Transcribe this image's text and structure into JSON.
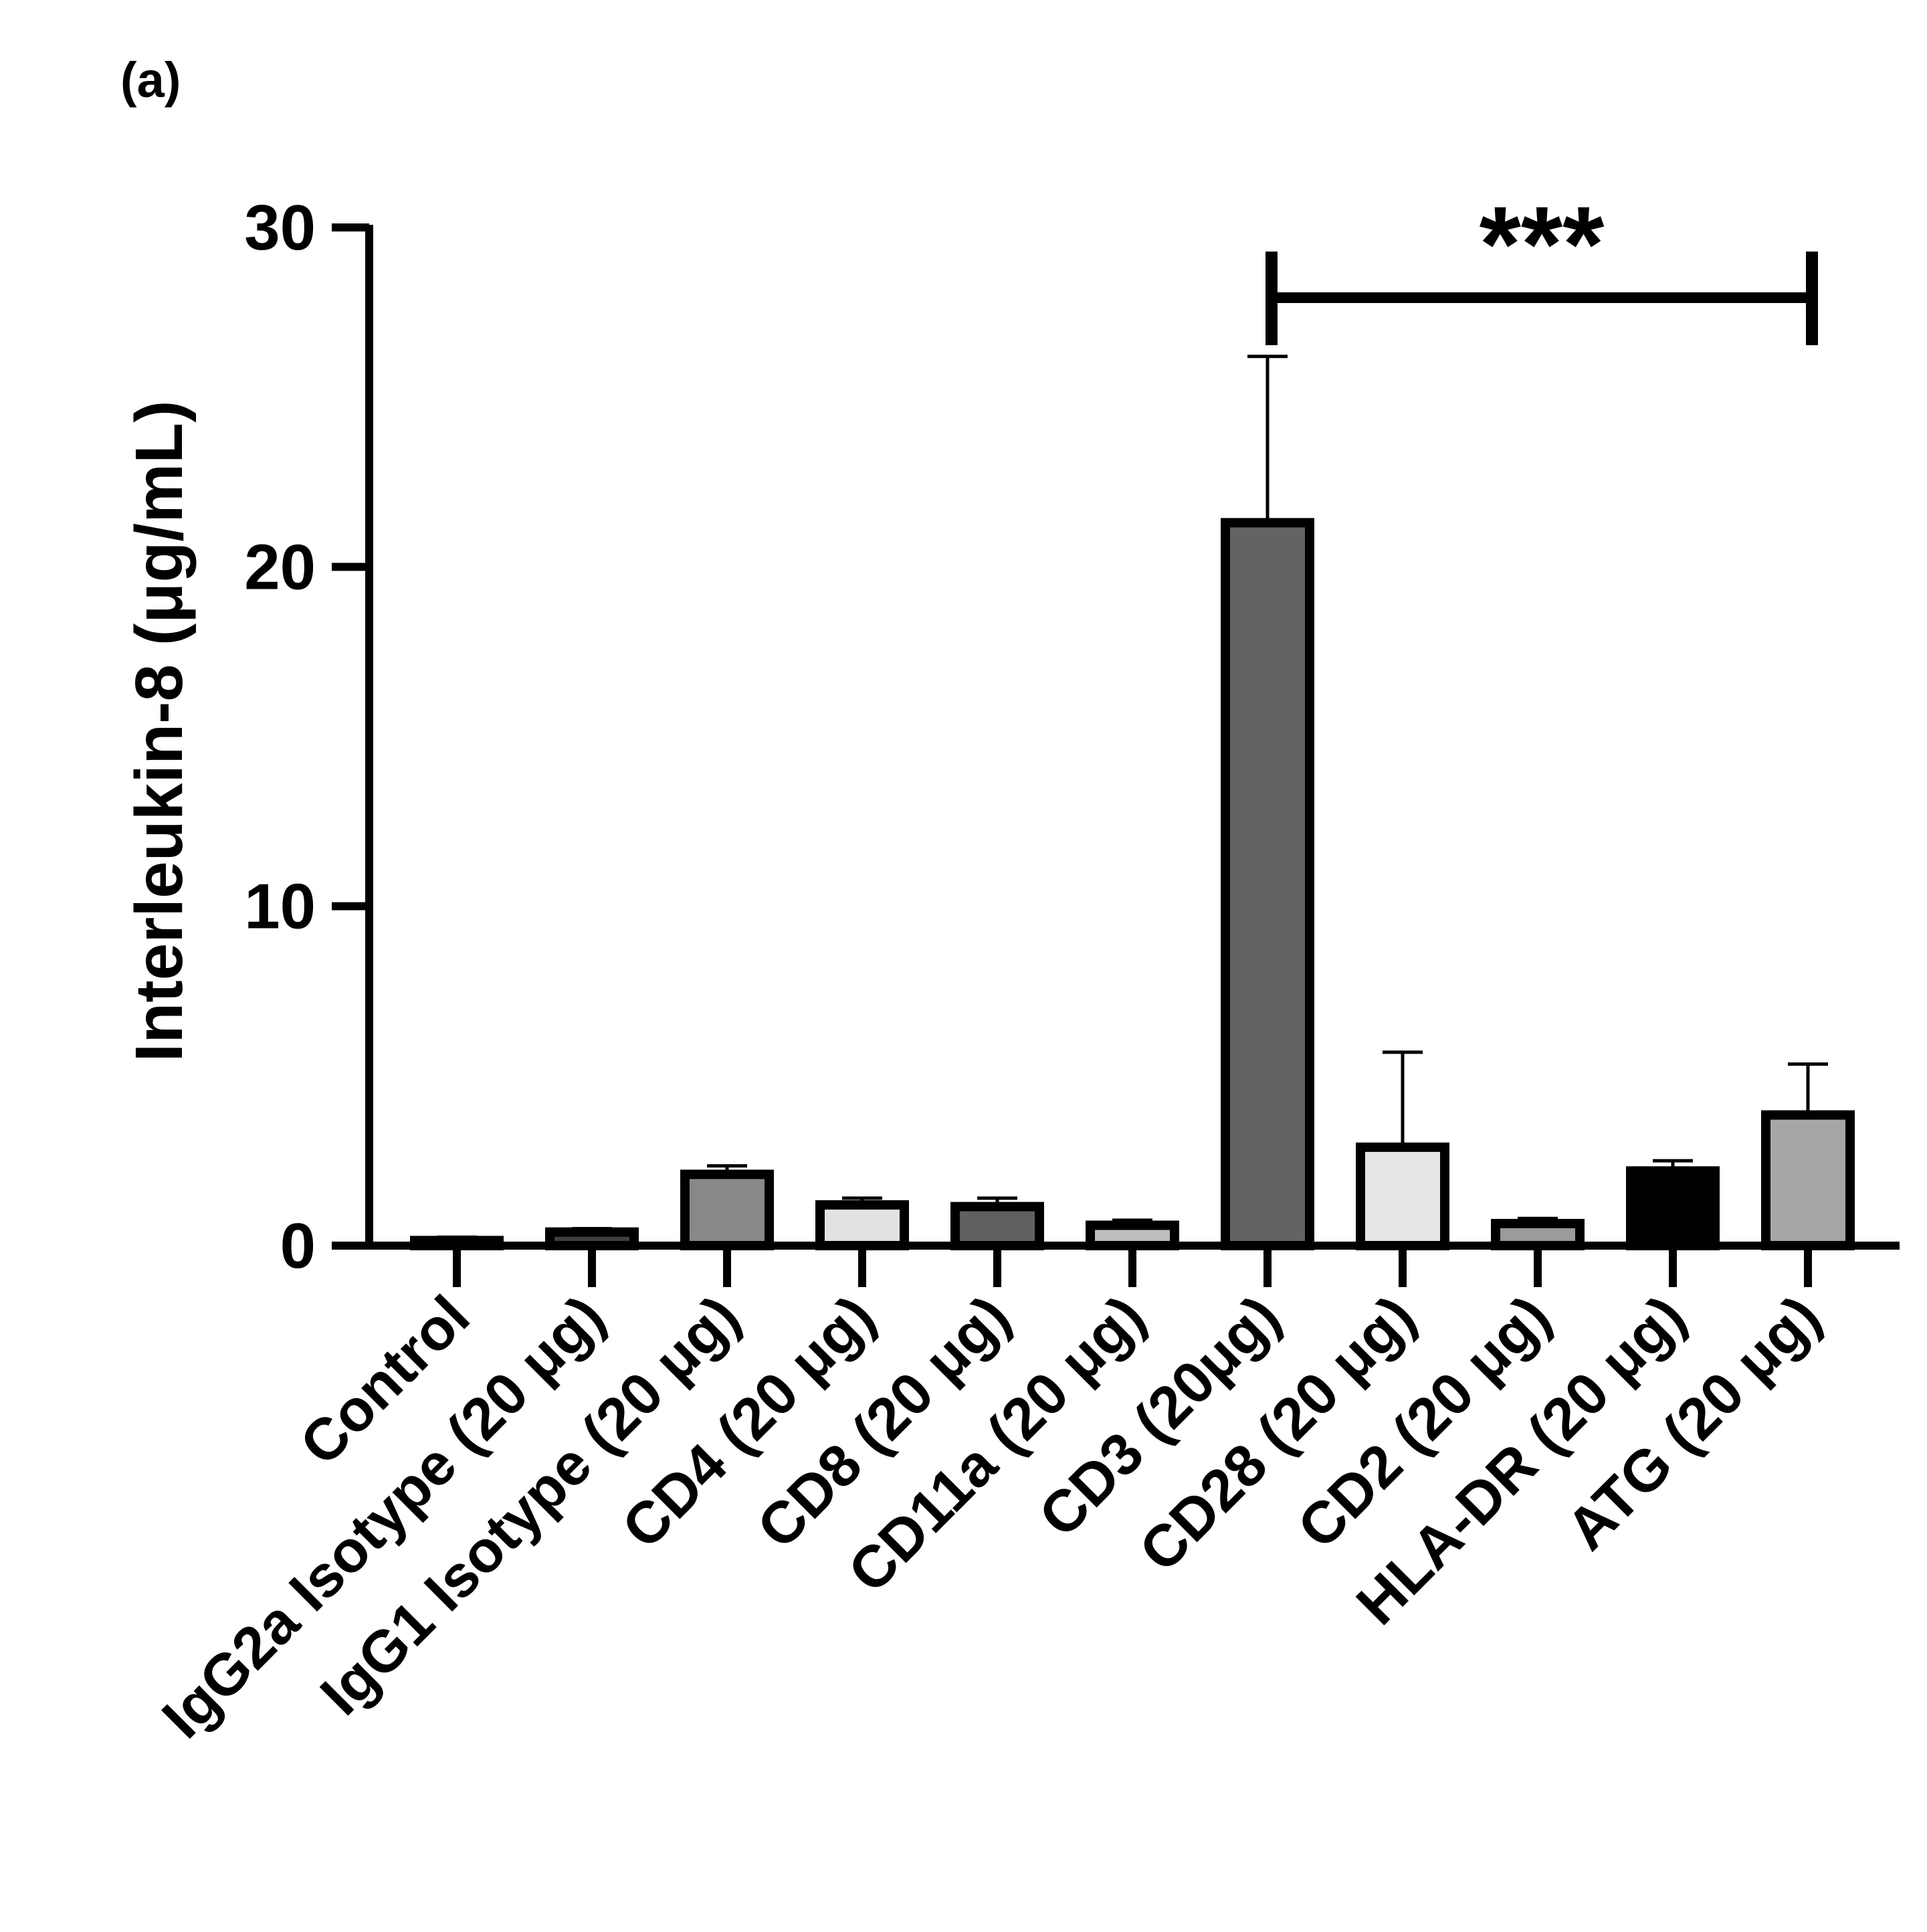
{
  "panel_label": "(a)",
  "significance": "***",
  "chart_data": {
    "type": "bar",
    "ylabel": "Interleukin-8 (μg/mL)",
    "xlabel": "",
    "ylim": [
      0,
      30
    ],
    "yticks": [
      0,
      10,
      20,
      30
    ],
    "grid": false,
    "categories": [
      "Control",
      "IgG2a Isotype (20 μg)",
      "IgG1 Isotype (20 μg)",
      "CD4 (20 μg)",
      "CD8 (20 μg)",
      "CD11a (20 μg)",
      "CD3 (20μg)",
      "CD28 (20 μg)",
      "CD2 (20 μg)",
      "HLA-DR (20 μg)",
      "ATG (20 μg)"
    ],
    "values": [
      0.15,
      0.4,
      2.1,
      1.2,
      1.15,
      0.6,
      21.3,
      2.9,
      0.65,
      2.2,
      3.85
    ],
    "errors": [
      0.1,
      0.1,
      0.25,
      0.2,
      0.25,
      0.15,
      4.9,
      2.8,
      0.15,
      0.3,
      1.5
    ],
    "colors": [
      "#808080",
      "#404040",
      "#888888",
      "#e2e2e2",
      "#606060",
      "#bdbdbd",
      "#636363",
      "#e6e6e6",
      "#9b9b9b",
      "#000000",
      "#a6a6a6"
    ],
    "significance_bracket": {
      "from": "CD3 (20μg)",
      "to": "ATG (20 μg)",
      "label": "***"
    }
  }
}
